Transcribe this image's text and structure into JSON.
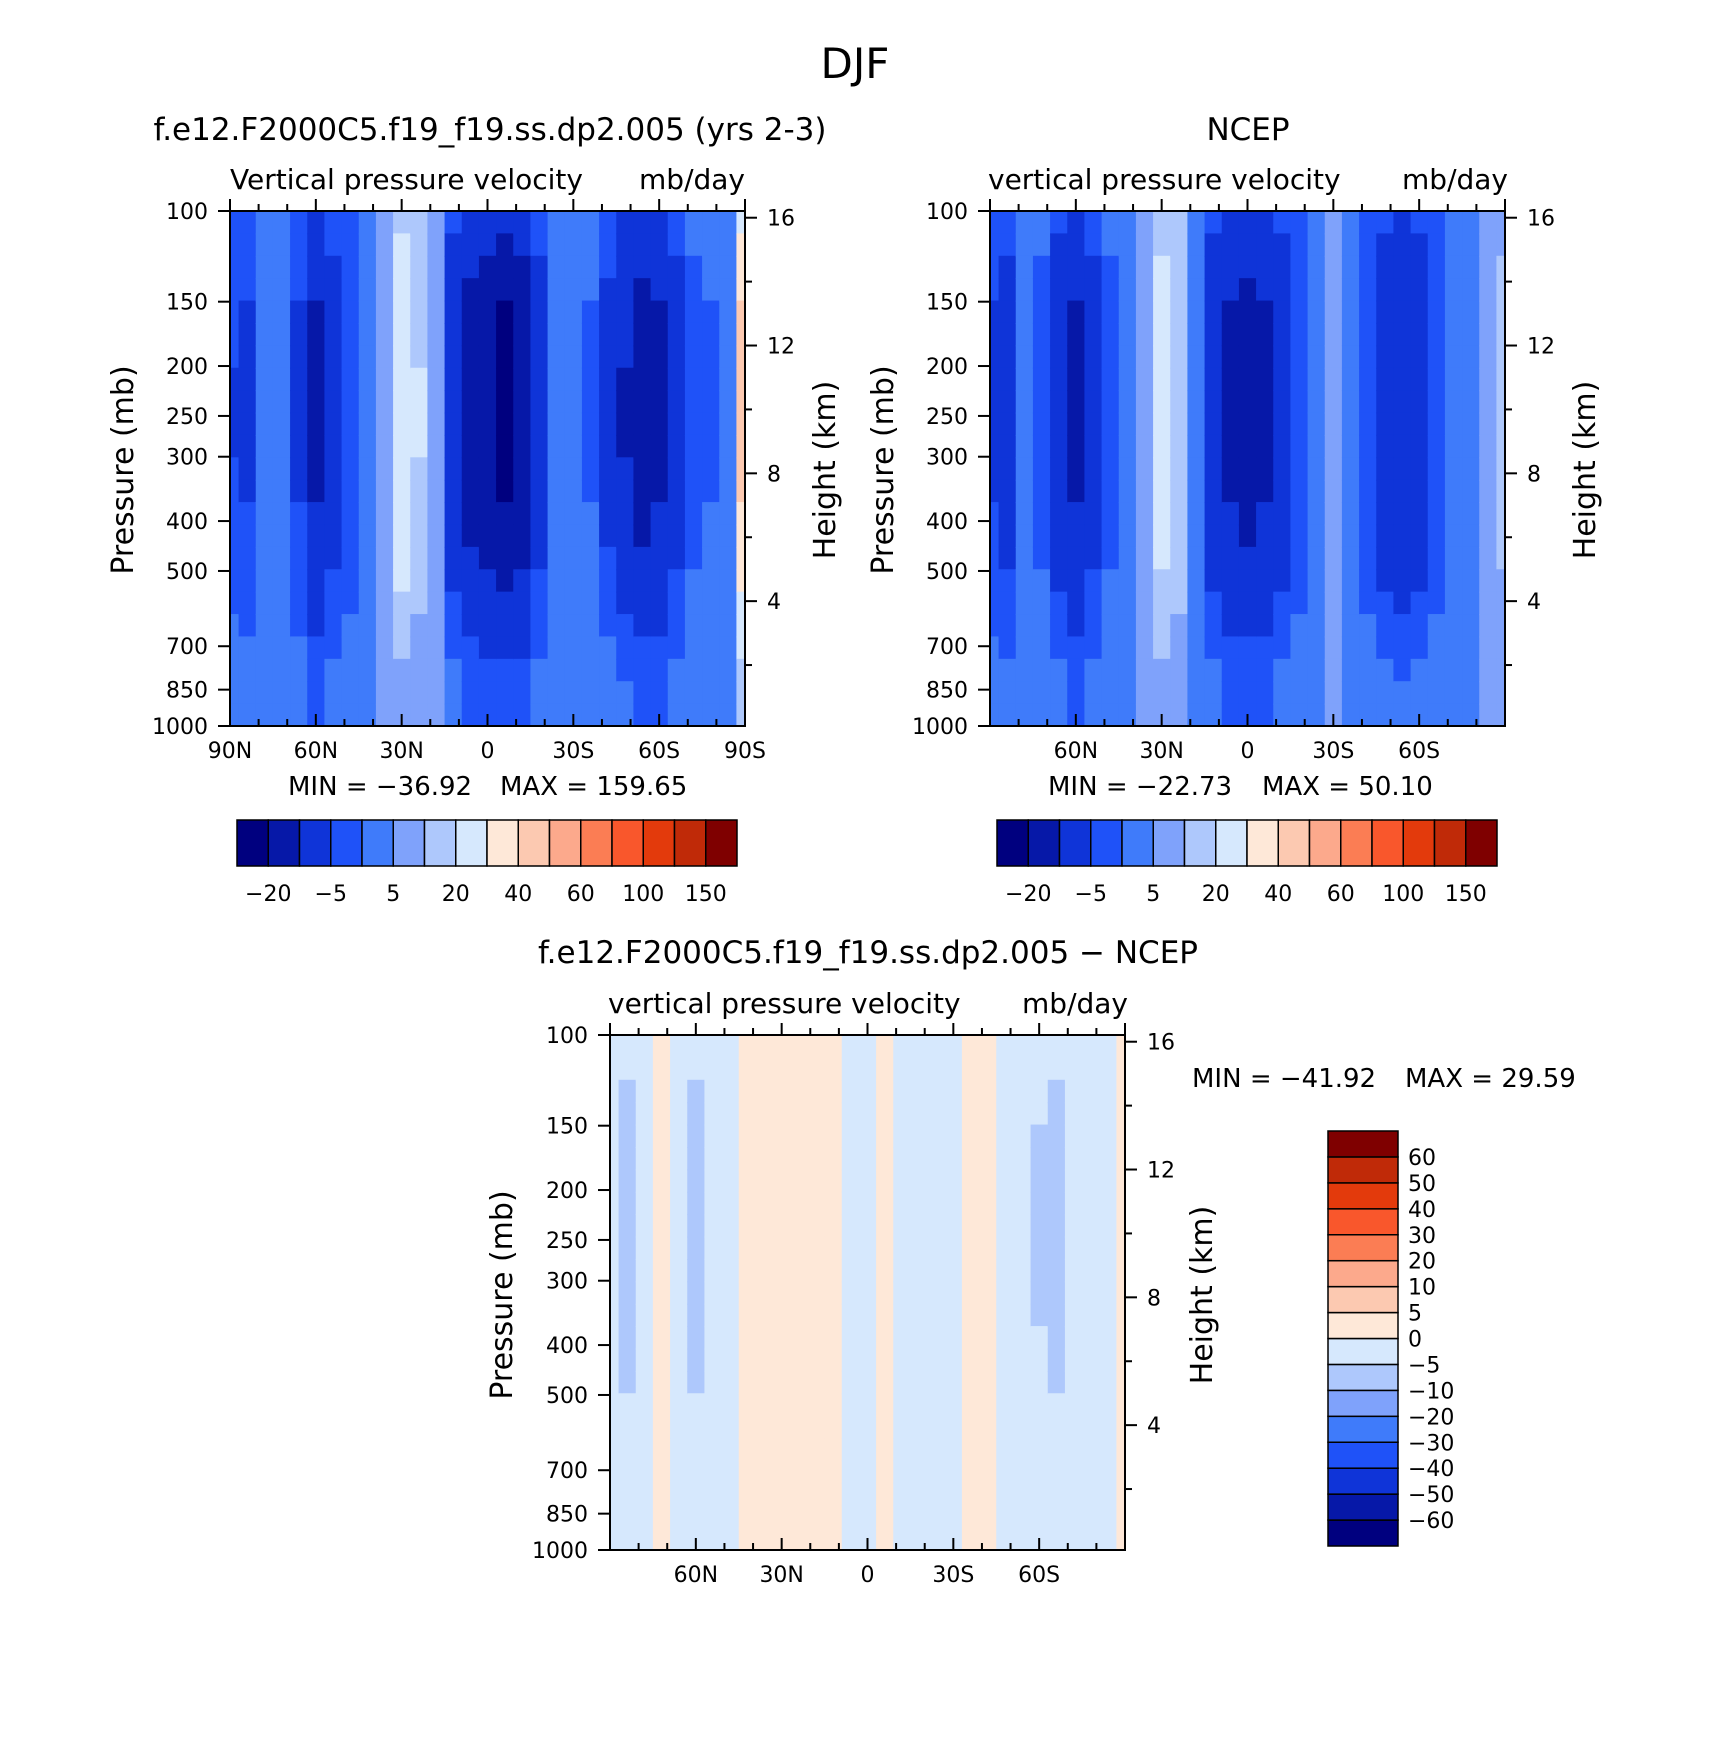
{
  "figure_title": "DJF",
  "colors": {
    "abs_scale": [
      "#00007f",
      "#0618a8",
      "#0f34d8",
      "#1f52f8",
      "#3f7bfa",
      "#7fa2fb",
      "#aec8fc",
      "#d6e8fd",
      "#fee8d8",
      "#fcc9b1",
      "#fca98c",
      "#fb7d54",
      "#f9572c",
      "#e33a0c",
      "#c02a08",
      "#7f0000"
    ],
    "diff_scale": [
      "#00007f",
      "#0618a8",
      "#0f34d8",
      "#1f52f8",
      "#3f7bfa",
      "#7fa2fb",
      "#aec8fc",
      "#d6e8fd",
      "#fee8d8",
      "#fcc9b1",
      "#fca98c",
      "#fb7d54",
      "#f9572c",
      "#e33a0c",
      "#c02a08",
      "#7f0000"
    ]
  },
  "chart_data": [
    {
      "type": "heatmap",
      "id": "model",
      "title": "f.e12.F2000C5.f19_f19.ss.dp2.005 (yrs 2-3)",
      "subtitle_left": "Vertical pressure velocity",
      "subtitle_right": "mb/day",
      "ylabel": "Pressure (mb)",
      "ylabel_right": "Height (km)",
      "x_ticks": [
        "90N",
        "60N",
        "30N",
        "0",
        "30S",
        "60S",
        "90S"
      ],
      "x_tick_values": [
        90,
        60,
        30,
        0,
        -30,
        -60,
        -90
      ],
      "xlim": [
        90,
        -90
      ],
      "y_ticks": [
        "100",
        "150",
        "200",
        "250",
        "300",
        "400",
        "500",
        "700",
        "850",
        "1000"
      ],
      "y_tick_values": [
        100,
        150,
        200,
        250,
        300,
        400,
        500,
        700,
        850,
        1000
      ],
      "ylim": [
        100,
        1000
      ],
      "height_ticks": [
        "16",
        "12",
        "8",
        "4"
      ],
      "height_tick_values": [
        16,
        12,
        8,
        4
      ],
      "min_label": "MIN = −36.92",
      "max_label": "MAX = 159.65",
      "min": -36.92,
      "max": 159.65,
      "colorbar_labels": [
        "−20",
        "−5",
        "5",
        "20",
        "40",
        "60",
        "100",
        "150"
      ],
      "colorbar_levels": [
        -30,
        -20,
        -10,
        -5,
        0,
        5,
        10,
        20,
        30,
        40,
        50,
        60,
        80,
        100,
        150
      ],
      "profile_lat": [
        90,
        84,
        78,
        72,
        66,
        60,
        54,
        48,
        42,
        36,
        30,
        24,
        18,
        12,
        6,
        0,
        -6,
        -12,
        -18,
        -24,
        -30,
        -36,
        -42,
        -48,
        -54,
        -60,
        -66,
        -72,
        -78,
        -84,
        -90
      ],
      "profile_vals": [
        -9,
        -10,
        -2,
        -4,
        -10,
        -20,
        -12,
        -8,
        -3,
        3,
        14,
        9,
        1,
        -14,
        -22,
        -24,
        -30,
        -26,
        -12,
        -4,
        -1,
        -5,
        -11,
        -18,
        -22,
        -20,
        -12,
        -6,
        -5,
        -4,
        30
      ]
    },
    {
      "type": "heatmap",
      "id": "ncep",
      "title": "NCEP",
      "subtitle_left": "vertical pressure velocity",
      "subtitle_right": "mb/day",
      "ylabel": "Pressure (mb)",
      "ylabel_right": "Height (km)",
      "x_ticks": [
        "60N",
        "30N",
        "0",
        "30S",
        "60S"
      ],
      "x_tick_values": [
        60,
        30,
        0,
        -30,
        -60
      ],
      "xlim": [
        90,
        -90
      ],
      "y_ticks": [
        "100",
        "150",
        "200",
        "250",
        "300",
        "400",
        "500",
        "700",
        "850",
        "1000"
      ],
      "y_tick_values": [
        100,
        150,
        200,
        250,
        300,
        400,
        500,
        700,
        850,
        1000
      ],
      "ylim": [
        100,
        1000
      ],
      "height_ticks": [
        "16",
        "12",
        "8",
        "4"
      ],
      "height_tick_values": [
        16,
        12,
        8,
        4
      ],
      "min_label": "MIN = −22.73",
      "max_label": "MAX =   50.10",
      "min": -22.73,
      "max": 50.1,
      "colorbar_labels": [
        "−20",
        "−5",
        "5",
        "20",
        "40",
        "60",
        "100",
        "150"
      ],
      "colorbar_levels": [
        -30,
        -20,
        -10,
        -5,
        0,
        5,
        10,
        20,
        30,
        40,
        50,
        60,
        80,
        100,
        150
      ],
      "profile_lat": [
        90,
        84,
        78,
        72,
        66,
        60,
        54,
        48,
        42,
        36,
        30,
        24,
        18,
        12,
        6,
        0,
        -6,
        -12,
        -18,
        -24,
        -30,
        -36,
        -42,
        -48,
        -54,
        -60,
        -66,
        -72,
        -78,
        -84,
        -90
      ],
      "profile_vals": [
        -10,
        -12,
        -4,
        -6,
        -14,
        -20,
        -12,
        -6,
        -2,
        4,
        12,
        8,
        -2,
        -14,
        -20,
        -22,
        -20,
        -15,
        -8,
        -2,
        1,
        -3,
        -8,
        -14,
        -16,
        -14,
        -8,
        -4,
        -2,
        2,
        6
      ]
    },
    {
      "type": "heatmap",
      "id": "diff",
      "title": "f.e12.F2000C5.f19_f19.ss.dp2.005 − NCEP",
      "subtitle_left": "vertical pressure velocity",
      "subtitle_right": "mb/day",
      "ylabel": "Pressure (mb)",
      "ylabel_right": "Height (km)",
      "x_ticks": [
        "60N",
        "30N",
        "0",
        "30S",
        "60S"
      ],
      "x_tick_values": [
        60,
        30,
        0,
        -30,
        -60
      ],
      "xlim": [
        90,
        -90
      ],
      "y_ticks": [
        "100",
        "150",
        "200",
        "250",
        "300",
        "400",
        "500",
        "700",
        "850",
        "1000"
      ],
      "y_tick_values": [
        100,
        150,
        200,
        250,
        300,
        400,
        500,
        700,
        850,
        1000
      ],
      "ylim": [
        100,
        1000
      ],
      "height_ticks": [
        "16",
        "12",
        "8",
        "4"
      ],
      "height_tick_values": [
        16,
        12,
        8,
        4
      ],
      "min_label": "MIN = −41.92",
      "max_label": "MAX =   29.59",
      "min": -41.92,
      "max": 29.59,
      "colorbar_labels": [
        "60",
        "50",
        "40",
        "30",
        "20",
        "10",
        "5",
        "0",
        "−5",
        "−10",
        "−20",
        "−30",
        "−40",
        "−50",
        "−60"
      ],
      "colorbar_levels": [
        -60,
        -50,
        -40,
        -30,
        -20,
        -10,
        -5,
        0,
        5,
        10,
        20,
        30,
        40,
        50,
        60
      ],
      "profile_lat": [
        90,
        84,
        78,
        72,
        66,
        60,
        54,
        48,
        42,
        36,
        30,
        24,
        18,
        12,
        6,
        0,
        -6,
        -12,
        -18,
        -24,
        -30,
        -36,
        -42,
        -48,
        -54,
        -60,
        -66,
        -72,
        -78,
        -84,
        -90
      ],
      "profile_vals": [
        -4,
        -6,
        -2,
        2,
        -3,
        -6,
        -4,
        -2,
        2,
        3,
        4,
        2,
        3,
        1,
        -3,
        -1,
        3,
        -4,
        -2,
        -1,
        -2,
        3,
        2,
        -1,
        -3,
        -5,
        -6,
        -3,
        -2,
        -4,
        4
      ]
    }
  ]
}
